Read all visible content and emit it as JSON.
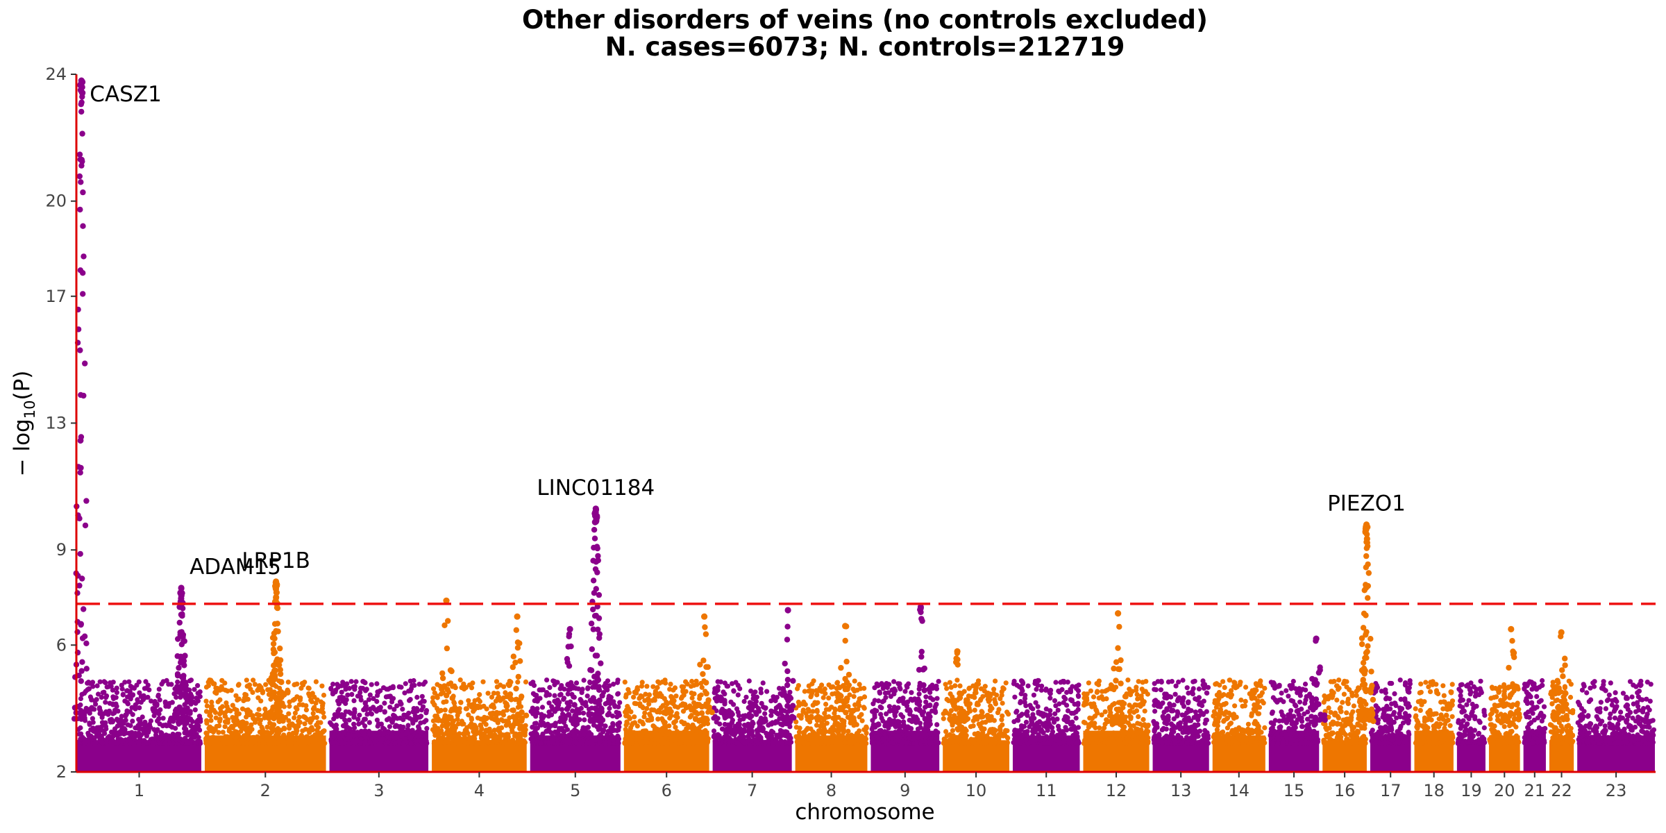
{
  "chart_data": {
    "type": "scatter",
    "title": "Other disorders of veins (no controls excluded)",
    "subtitle": "N. cases=6073; N. controls=212719",
    "xlabel": "chromosome",
    "ylabel_prefix": "− log",
    "ylabel_sub": "10",
    "ylabel_suffix": "(P)",
    "ylim": [
      2,
      24
    ],
    "yticks": [
      2,
      6,
      9,
      13,
      17,
      20,
      24
    ],
    "significance_threshold": 7.3,
    "colors": {
      "odd": "#8b008b",
      "even": "#ee7600",
      "threshold": "#ee1111",
      "axis": "#dd0000"
    },
    "chromosomes": [
      {
        "label": "1",
        "length": 248
      },
      {
        "label": "2",
        "length": 242
      },
      {
        "label": "3",
        "length": 198
      },
      {
        "label": "4",
        "length": 190
      },
      {
        "label": "5",
        "length": 181
      },
      {
        "label": "6",
        "length": 171
      },
      {
        "label": "7",
        "length": 159
      },
      {
        "label": "8",
        "length": 145
      },
      {
        "label": "9",
        "length": 138
      },
      {
        "label": "10",
        "length": 134
      },
      {
        "label": "11",
        "length": 135
      },
      {
        "label": "12",
        "length": 133
      },
      {
        "label": "13",
        "length": 114
      },
      {
        "label": "14",
        "length": 107
      },
      {
        "label": "15",
        "length": 102
      },
      {
        "label": "16",
        "length": 90
      },
      {
        "label": "17",
        "length": 83
      },
      {
        "label": "18",
        "length": 80
      },
      {
        "label": "19",
        "length": 59
      },
      {
        "label": "20",
        "length": 64
      },
      {
        "label": "21",
        "length": 47
      },
      {
        "label": "22",
        "length": 51
      },
      {
        "label": "23",
        "length": 156
      }
    ],
    "peaks": [
      {
        "chr": "1",
        "pos": 10,
        "max": 23.8,
        "gene": "CASZ1"
      },
      {
        "chr": "1",
        "pos": 207,
        "max": 7.8,
        "gene": "ADAM15"
      },
      {
        "chr": "2",
        "pos": 142,
        "max": 8.0,
        "gene": "LRP1B"
      },
      {
        "chr": "5",
        "pos": 131,
        "max": 10.3,
        "gene": "LINC01184"
      },
      {
        "chr": "16",
        "pos": 88,
        "max": 9.8,
        "gene": "PIEZO1"
      }
    ],
    "minor_peaks": [
      {
        "chr": "4",
        "pos": 30,
        "max": 7.4
      },
      {
        "chr": "4",
        "pos": 170,
        "max": 6.9
      },
      {
        "chr": "5",
        "pos": 80,
        "max": 6.5
      },
      {
        "chr": "6",
        "pos": 160,
        "max": 6.9
      },
      {
        "chr": "7",
        "pos": 150,
        "max": 7.1
      },
      {
        "chr": "8",
        "pos": 100,
        "max": 6.6
      },
      {
        "chr": "9",
        "pos": 100,
        "max": 7.2
      },
      {
        "chr": "10",
        "pos": 30,
        "max": 5.8
      },
      {
        "chr": "12",
        "pos": 70,
        "max": 7.0
      },
      {
        "chr": "15",
        "pos": 95,
        "max": 6.2
      },
      {
        "chr": "20",
        "pos": 45,
        "max": 6.5
      },
      {
        "chr": "22",
        "pos": 25,
        "max": 6.4
      }
    ]
  }
}
